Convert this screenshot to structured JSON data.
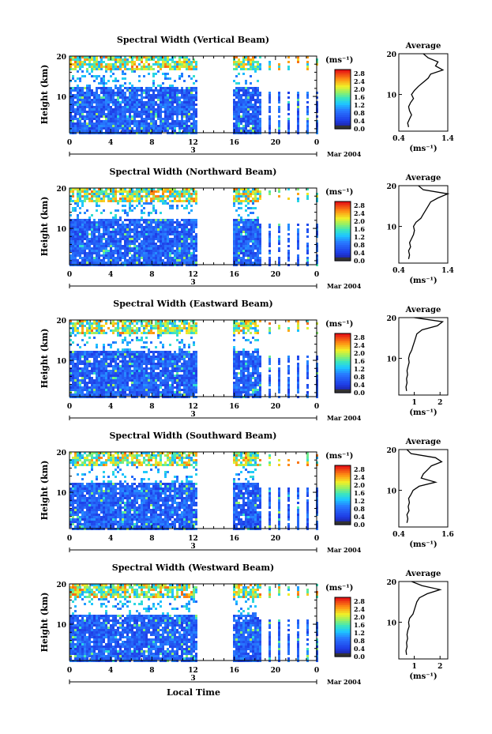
{
  "figure": {
    "xlabel": "Local Time",
    "ylabel": "Height (km)",
    "date_label": "Mar 2004",
    "day_label": "3",
    "colorbar_unit": "(ms⁻¹)",
    "colorbar_ticks": [
      "2.8",
      "2.4",
      "2.0",
      "1.6",
      "1.2",
      "0.8",
      "0.4",
      "0.0"
    ],
    "avg_title": "Average",
    "avg_unit": "(ms⁻¹)"
  },
  "chart_data": [
    {
      "type": "heatmap",
      "title": "Spectral Width (Vertical Beam)",
      "x_ticks": [
        "0",
        "4",
        "8",
        "12",
        "16",
        "20",
        "0"
      ],
      "y_ticks": [
        "20",
        "10"
      ],
      "xlim": [
        0,
        24
      ],
      "ylim": [
        1,
        20
      ],
      "data_gap_hours": [
        12.3,
        15.8
      ],
      "colorbar_range": [
        0.0,
        3.0
      ],
      "avg_profile": {
        "x_ticks": [
          "0.4",
          "1.4"
        ],
        "y_ticks": [
          "20",
          "10"
        ],
        "xlim": [
          0.4,
          1.4
        ],
        "height_km": [
          2,
          3,
          4,
          5,
          6,
          7,
          8,
          9,
          10,
          11,
          12,
          13,
          14,
          15,
          16,
          17,
          18,
          19,
          20
        ],
        "width_ms": [
          0.6,
          0.58,
          0.62,
          0.66,
          0.62,
          0.6,
          0.64,
          0.7,
          0.66,
          0.72,
          0.8,
          0.9,
          1.0,
          1.05,
          1.3,
          1.15,
          1.2,
          1.0,
          0.9
        ]
      }
    },
    {
      "type": "heatmap",
      "title": "Spectral Width (Northward Beam)",
      "x_ticks": [
        "0",
        "4",
        "8",
        "12",
        "16",
        "20",
        "0"
      ],
      "y_ticks": [
        "20",
        "10"
      ],
      "xlim": [
        0,
        24
      ],
      "ylim": [
        1,
        20
      ],
      "data_gap_hours": [
        12.3,
        15.8
      ],
      "colorbar_range": [
        0.0,
        3.0
      ],
      "avg_profile": {
        "x_ticks": [
          "0.4",
          "1.4"
        ],
        "y_ticks": [
          "20",
          "10"
        ],
        "xlim": [
          0.4,
          1.4
        ],
        "height_km": [
          2,
          3,
          4,
          5,
          6,
          7,
          8,
          9,
          10,
          11,
          12,
          13,
          14,
          15,
          16,
          17,
          18,
          19,
          20
        ],
        "width_ms": [
          0.6,
          0.62,
          0.6,
          0.64,
          0.62,
          0.66,
          0.7,
          0.72,
          0.7,
          0.75,
          0.85,
          0.9,
          0.95,
          1.0,
          1.05,
          1.2,
          1.4,
          0.9,
          0.8
        ]
      }
    },
    {
      "type": "heatmap",
      "title": "Spectral Width (Eastward Beam)",
      "x_ticks": [
        "0",
        "4",
        "8",
        "12",
        "16",
        "20",
        "0"
      ],
      "y_ticks": [
        "20",
        "10"
      ],
      "xlim": [
        0,
        24
      ],
      "ylim": [
        1,
        20
      ],
      "data_gap_hours": [
        12.3,
        15.8
      ],
      "colorbar_range": [
        0.0,
        3.0
      ],
      "avg_profile": {
        "x_ticks": [
          "1",
          "2"
        ],
        "y_ticks": [
          "20",
          "10"
        ],
        "xlim": [
          0.4,
          2.3
        ],
        "height_km": [
          2,
          3,
          4,
          5,
          6,
          7,
          8,
          9,
          10,
          11,
          12,
          13,
          14,
          15,
          16,
          17,
          18,
          19,
          20
        ],
        "width_ms": [
          0.7,
          0.68,
          0.72,
          0.7,
          0.74,
          0.72,
          0.76,
          0.8,
          0.78,
          0.82,
          0.9,
          0.95,
          1.0,
          1.05,
          1.1,
          1.3,
          1.9,
          2.1,
          1.0
        ]
      }
    },
    {
      "type": "heatmap",
      "title": "Spectral Width (Southward Beam)",
      "x_ticks": [
        "0",
        "4",
        "8",
        "12",
        "16",
        "20",
        "0"
      ],
      "y_ticks": [
        "20",
        "10"
      ],
      "xlim": [
        0,
        24
      ],
      "ylim": [
        1,
        20
      ],
      "data_gap_hours": [
        12.3,
        15.8
      ],
      "colorbar_range": [
        0.0,
        3.0
      ],
      "avg_profile": {
        "x_ticks": [
          "0.4",
          "1.6"
        ],
        "y_ticks": [
          "20",
          "10"
        ],
        "xlim": [
          0.4,
          1.6
        ],
        "height_km": [
          2,
          3,
          4,
          5,
          6,
          7,
          8,
          9,
          10,
          11,
          12,
          13,
          14,
          15,
          16,
          17,
          18,
          19,
          20
        ],
        "width_ms": [
          0.6,
          0.62,
          0.6,
          0.65,
          0.63,
          0.66,
          0.64,
          0.7,
          0.75,
          0.9,
          1.3,
          0.95,
          1.0,
          1.1,
          1.2,
          1.45,
          1.3,
          0.7,
          0.6
        ]
      }
    },
    {
      "type": "heatmap",
      "title": "Spectral Width (Westward Beam)",
      "x_ticks": [
        "0",
        "4",
        "8",
        "12",
        "16",
        "20",
        "0"
      ],
      "y_ticks": [
        "20",
        "10"
      ],
      "xlim": [
        0,
        24
      ],
      "ylim": [
        1,
        20
      ],
      "data_gap_hours": [
        12.3,
        15.8
      ],
      "colorbar_range": [
        0.0,
        3.0
      ],
      "avg_profile": {
        "x_ticks": [
          "1",
          "2"
        ],
        "y_ticks": [
          "20",
          "10"
        ],
        "xlim": [
          0.4,
          2.3
        ],
        "height_km": [
          2,
          3,
          4,
          5,
          6,
          7,
          8,
          9,
          10,
          11,
          12,
          13,
          14,
          15,
          16,
          17,
          18,
          19,
          20
        ],
        "width_ms": [
          0.7,
          0.68,
          0.72,
          0.7,
          0.74,
          0.72,
          0.75,
          0.8,
          0.78,
          0.82,
          0.95,
          1.0,
          1.05,
          1.1,
          1.2,
          1.5,
          2.0,
          1.3,
          0.9
        ]
      }
    }
  ]
}
